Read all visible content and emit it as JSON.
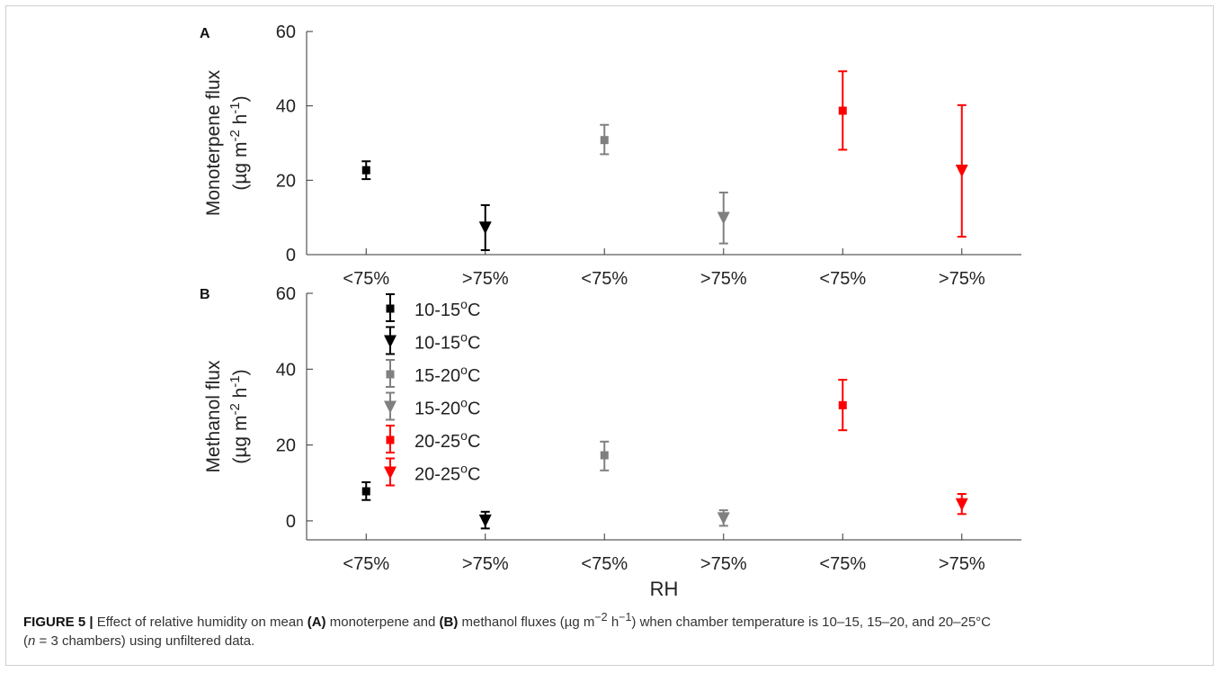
{
  "chart_data": [
    {
      "panel_label": "A",
      "type": "scatter",
      "categories": [
        "<75%",
        ">75%",
        "<75%",
        ">75%",
        "<75%",
        ">75%"
      ],
      "ylabel": "Monoterpene flux",
      "ylabel_unit": "(µg m-2 h-1)",
      "xlabel": "",
      "ylim": [
        0,
        60
      ],
      "yticks": [
        "0",
        "20",
        "40",
        "60"
      ],
      "grid": false,
      "points": [
        {
          "category_index": 0,
          "y": 22.7,
          "low": 20.3,
          "high": 25.1,
          "color": "#000000",
          "marker": "square"
        },
        {
          "category_index": 1,
          "y": 7.2,
          "low": 1.2,
          "high": 13.3,
          "color": "#000000",
          "marker": "triangle-down"
        },
        {
          "category_index": 2,
          "y": 30.8,
          "low": 27.0,
          "high": 34.9,
          "color": "#808080",
          "marker": "square"
        },
        {
          "category_index": 3,
          "y": 9.8,
          "low": 3.0,
          "high": 16.7,
          "color": "#808080",
          "marker": "triangle-down"
        },
        {
          "category_index": 4,
          "y": 38.7,
          "low": 28.2,
          "high": 49.3,
          "color": "#ff0000",
          "marker": "square"
        },
        {
          "category_index": 5,
          "y": 22.5,
          "low": 4.8,
          "high": 40.2,
          "color": "#ff0000",
          "marker": "triangle-down"
        }
      ]
    },
    {
      "panel_label": "B",
      "type": "scatter",
      "categories": [
        "<75%",
        ">75%",
        "<75%",
        ">75%",
        "<75%",
        ">75%"
      ],
      "ylabel": "Methanol flux",
      "ylabel_unit": "(µg m-2 h-1)",
      "xlabel": "RH",
      "ylim": [
        -5,
        60
      ],
      "yticks": [
        "0",
        "20",
        "40",
        "60"
      ],
      "grid": false,
      "legend_position": "top-left",
      "legend": [
        {
          "label": "10-15oC",
          "color": "#000000",
          "marker": "square"
        },
        {
          "label": "10-15oC",
          "color": "#000000",
          "marker": "triangle-down"
        },
        {
          "label": "15-20oC",
          "color": "#808080",
          "marker": "square"
        },
        {
          "label": "15-20oC",
          "color": "#808080",
          "marker": "triangle-down"
        },
        {
          "label": "20-25oC",
          "color": "#ff0000",
          "marker": "square"
        },
        {
          "label": "20-25oC",
          "color": "#ff0000",
          "marker": "triangle-down"
        }
      ],
      "points": [
        {
          "category_index": 0,
          "y": 7.8,
          "low": 5.5,
          "high": 10.2,
          "color": "#000000",
          "marker": "square"
        },
        {
          "category_index": 1,
          "y": 0.0,
          "low": -2.0,
          "high": 2.4,
          "color": "#000000",
          "marker": "triangle-down"
        },
        {
          "category_index": 2,
          "y": 17.3,
          "low": 13.3,
          "high": 20.9,
          "color": "#808080",
          "marker": "square"
        },
        {
          "category_index": 3,
          "y": 0.6,
          "low": -1.3,
          "high": 2.8,
          "color": "#808080",
          "marker": "triangle-down"
        },
        {
          "category_index": 4,
          "y": 30.5,
          "low": 23.9,
          "high": 37.2,
          "color": "#ff0000",
          "marker": "square"
        },
        {
          "category_index": 5,
          "y": 4.3,
          "low": 1.8,
          "high": 7.1,
          "color": "#ff0000",
          "marker": "triangle-down"
        }
      ]
    }
  ],
  "caption": {
    "figure_label": "FIGURE 5 |",
    "text_1": "Effect of relative humidity on mean",
    "label_a": "(A)",
    "text_2": "monoterpene and",
    "label_b": "(B)",
    "text_3": "methanol fluxes (µg m",
    "sup_1": "−2",
    "text_4": "h",
    "sup_2": "−1",
    "text_5": ") when chamber temperature is 10–15, 15–20, and 20–25°C",
    "n_open": "(",
    "n_italic": "n",
    "n_rest": "= 3 chambers) using unfiltered data."
  }
}
